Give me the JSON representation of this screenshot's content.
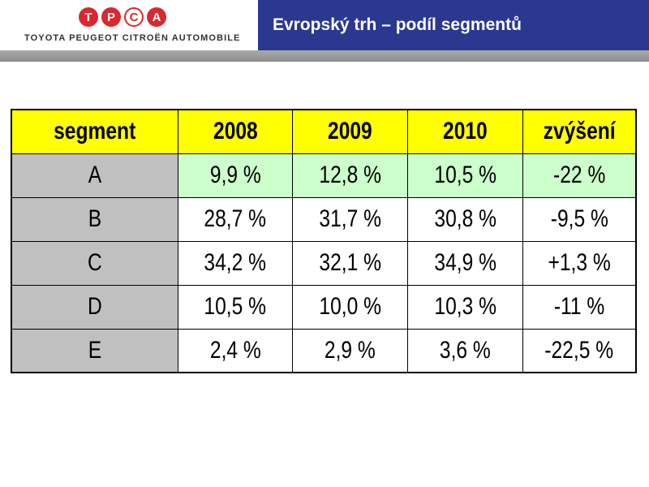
{
  "header": {
    "logo_letters": [
      "T",
      "P",
      "C",
      "A"
    ],
    "logo_text": "TOYOTA PEUGEOT CITROËN AUTOMOBILE",
    "title": "Evropský trh – podíl segmentů",
    "title_color": "#2a3890"
  },
  "table": {
    "headers": [
      "segment",
      "2008",
      "2009",
      "2010",
      "zvýšení"
    ],
    "rows": [
      {
        "segment": "A",
        "y2008": "9,9 %",
        "y2009": "12,8 %",
        "y2010": "10,5 %",
        "change": "-22 %"
      },
      {
        "segment": "B",
        "y2008": "28,7 %",
        "y2009": "31,7 %",
        "y2010": "30,8 %",
        "change": "-9,5 %"
      },
      {
        "segment": "C",
        "y2008": "34,2 %",
        "y2009": "32,1 %",
        "y2010": "34,9 %",
        "change": "+1,3 %"
      },
      {
        "segment": "D",
        "y2008": "10,5 %",
        "y2009": "10,0 %",
        "y2010": "10,3 %",
        "change": "-11 %"
      },
      {
        "segment": "E",
        "y2008": "2,4 %",
        "y2009": "2,9 %",
        "y2010": "3,6 %",
        "change": "-22,5 %"
      }
    ],
    "colors": {
      "header_bg": "#ffff00",
      "segment_bg": "#c0c0c0",
      "highlight_bg": "#ccffcc"
    }
  }
}
